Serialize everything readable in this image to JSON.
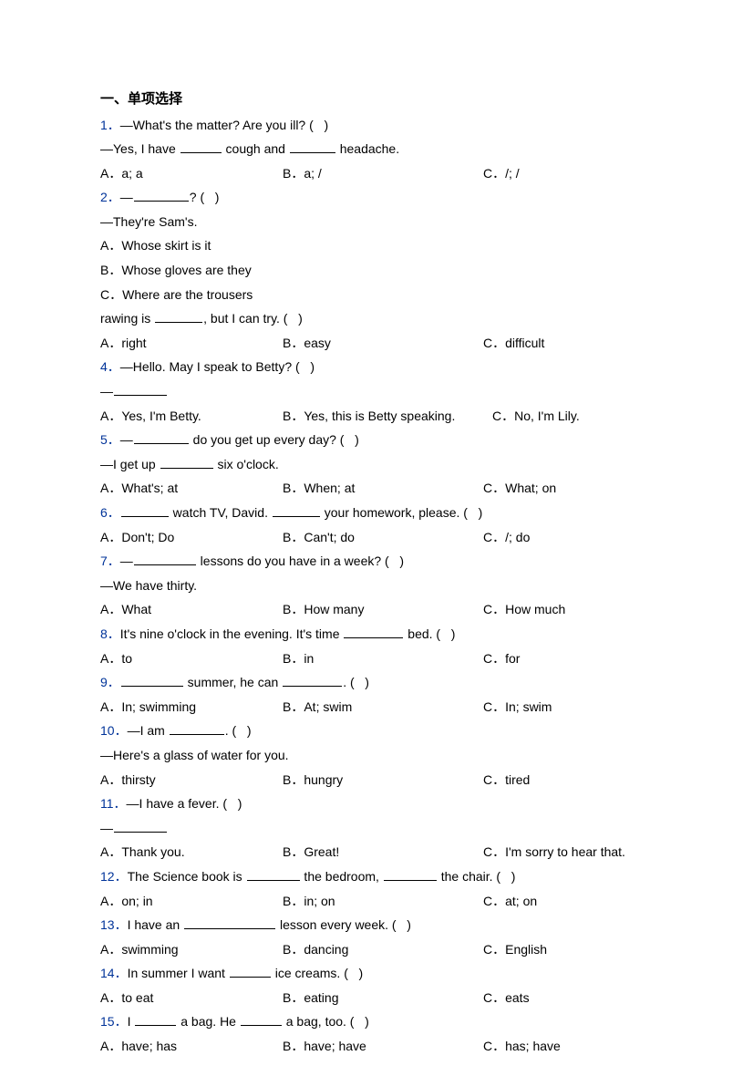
{
  "section_title": "一、单项选择",
  "questions": [
    {
      "num": "1．",
      "text_pre": "—What's the matter? Are you ill? (   )",
      "text2_pre": "—Yes, I have ",
      "text2_mid": " cough and ",
      "text2_post": " headache.",
      "blanks2": [
        45,
        50
      ],
      "opts": [
        "A．a; a",
        "B．a; /",
        "C．/; /"
      ],
      "opts_layout": "row"
    },
    {
      "num": "2．",
      "text_pre": "—",
      "text_post": "? (   )",
      "blanks": [
        60
      ],
      "text2_pre": "—They're Sam's.",
      "opts": [
        "A．Whose skirt is it",
        "B．Whose gloves are they",
        "C．Where are the trousers"
      ],
      "opts_layout": "full"
    },
    {
      "num": "",
      "text_pre": "rawing is ",
      "text_post": ", but I can try. (   )",
      "blanks": [
        52
      ],
      "opts": [
        "A．right",
        "B．easy",
        "C．difficult"
      ],
      "opts_layout": "row"
    },
    {
      "num": "4．",
      "text_pre": "—Hello. May I speak to Betty? (   )",
      "text2_pre": "—",
      "blanks2": [
        58
      ],
      "opts": [
        "A．Yes, I'm Betty.",
        "B．Yes, this is Betty speaking.",
        "C．No, I'm Lily."
      ],
      "opts_layout": "inline"
    },
    {
      "num": "5．",
      "text_pre": "—",
      "text_post": " do you get up every day? (   )",
      "blanks": [
        60
      ],
      "text2_pre": "—I get up ",
      "text2_post": " six o'clock.",
      "blanks2": [
        58
      ],
      "opts": [
        "A．What's; at",
        "B．When; at",
        "C．What; on"
      ],
      "opts_layout": "row"
    },
    {
      "num": "6．",
      "text_pre": "",
      "text_mid": " watch TV, David. ",
      "text_post": " your homework, please. (   )",
      "blanks": [
        52,
        52
      ],
      "opts": [
        "A．Don't; Do",
        "B．Can't; do",
        "C．/; do"
      ],
      "opts_layout": "row"
    },
    {
      "num": "7．",
      "text_pre": "—",
      "text_post": " lessons do you have in a week? (   )",
      "blanks": [
        68
      ],
      "text2_pre": "—We have thirty.",
      "opts": [
        "A．What",
        "B．How many",
        "C．How much"
      ],
      "opts_layout": "row"
    },
    {
      "num": "8．",
      "text_pre": "It's nine o'clock in the evening. It's time ",
      "text_post": " bed. (   )",
      "blanks": [
        65
      ],
      "opts": [
        "A．to",
        "B．in",
        "C．for"
      ],
      "opts_layout": "row"
    },
    {
      "num": "9．",
      "text_pre": "",
      "text_mid": " summer, he can ",
      "text_post": ". (   )",
      "blanks": [
        68,
        65
      ],
      "opts": [
        "A．In; swimming",
        "B．At; swim",
        "C．In; swim"
      ],
      "opts_layout": "row"
    },
    {
      "num": "10．",
      "text_pre": "—I am ",
      "text_post": ". (   )",
      "blanks": [
        60
      ],
      "text2_pre": "—Here's a glass of water for you.",
      "opts": [
        "A．thirsty",
        "B．hungry",
        "C．tired"
      ],
      "opts_layout": "row"
    },
    {
      "num": "11．",
      "text_pre": "—I have a fever. (   )",
      "text2_pre": "—",
      "blanks2": [
        58
      ],
      "opts": [
        "A．Thank you.",
        "B．Great!",
        "C．I'm sorry to hear that."
      ],
      "opts_layout": "row"
    },
    {
      "num": "12．",
      "text_pre": "The Science book is ",
      "text_mid": " the bedroom, ",
      "text_post": " the chair. (   )",
      "blanks": [
        58,
        58
      ],
      "opts": [
        "A．on; in",
        "B．in; on",
        "C．at; on"
      ],
      "opts_layout": "row"
    },
    {
      "num": "13．",
      "text_pre": "I have an ",
      "text_post": " lesson every week. (   )",
      "blanks": [
        100
      ],
      "opts": [
        "A．swimming",
        "B．dancing",
        "C．English"
      ],
      "opts_layout": "row"
    },
    {
      "num": "14．",
      "text_pre": "In summer I want ",
      "text_post": " ice creams. (   )",
      "blanks": [
        45
      ],
      "opts": [
        "A．to eat",
        "B．eating",
        "C．eats"
      ],
      "opts_layout": "row"
    },
    {
      "num": "15．",
      "text_pre": "I ",
      "text_mid": " a bag. He ",
      "text_post": " a bag, too. (   )",
      "blanks": [
        45,
        45
      ],
      "opts": [
        "A．have; has",
        "B．have; have",
        "C．has; have"
      ],
      "opts_layout": "row"
    }
  ]
}
